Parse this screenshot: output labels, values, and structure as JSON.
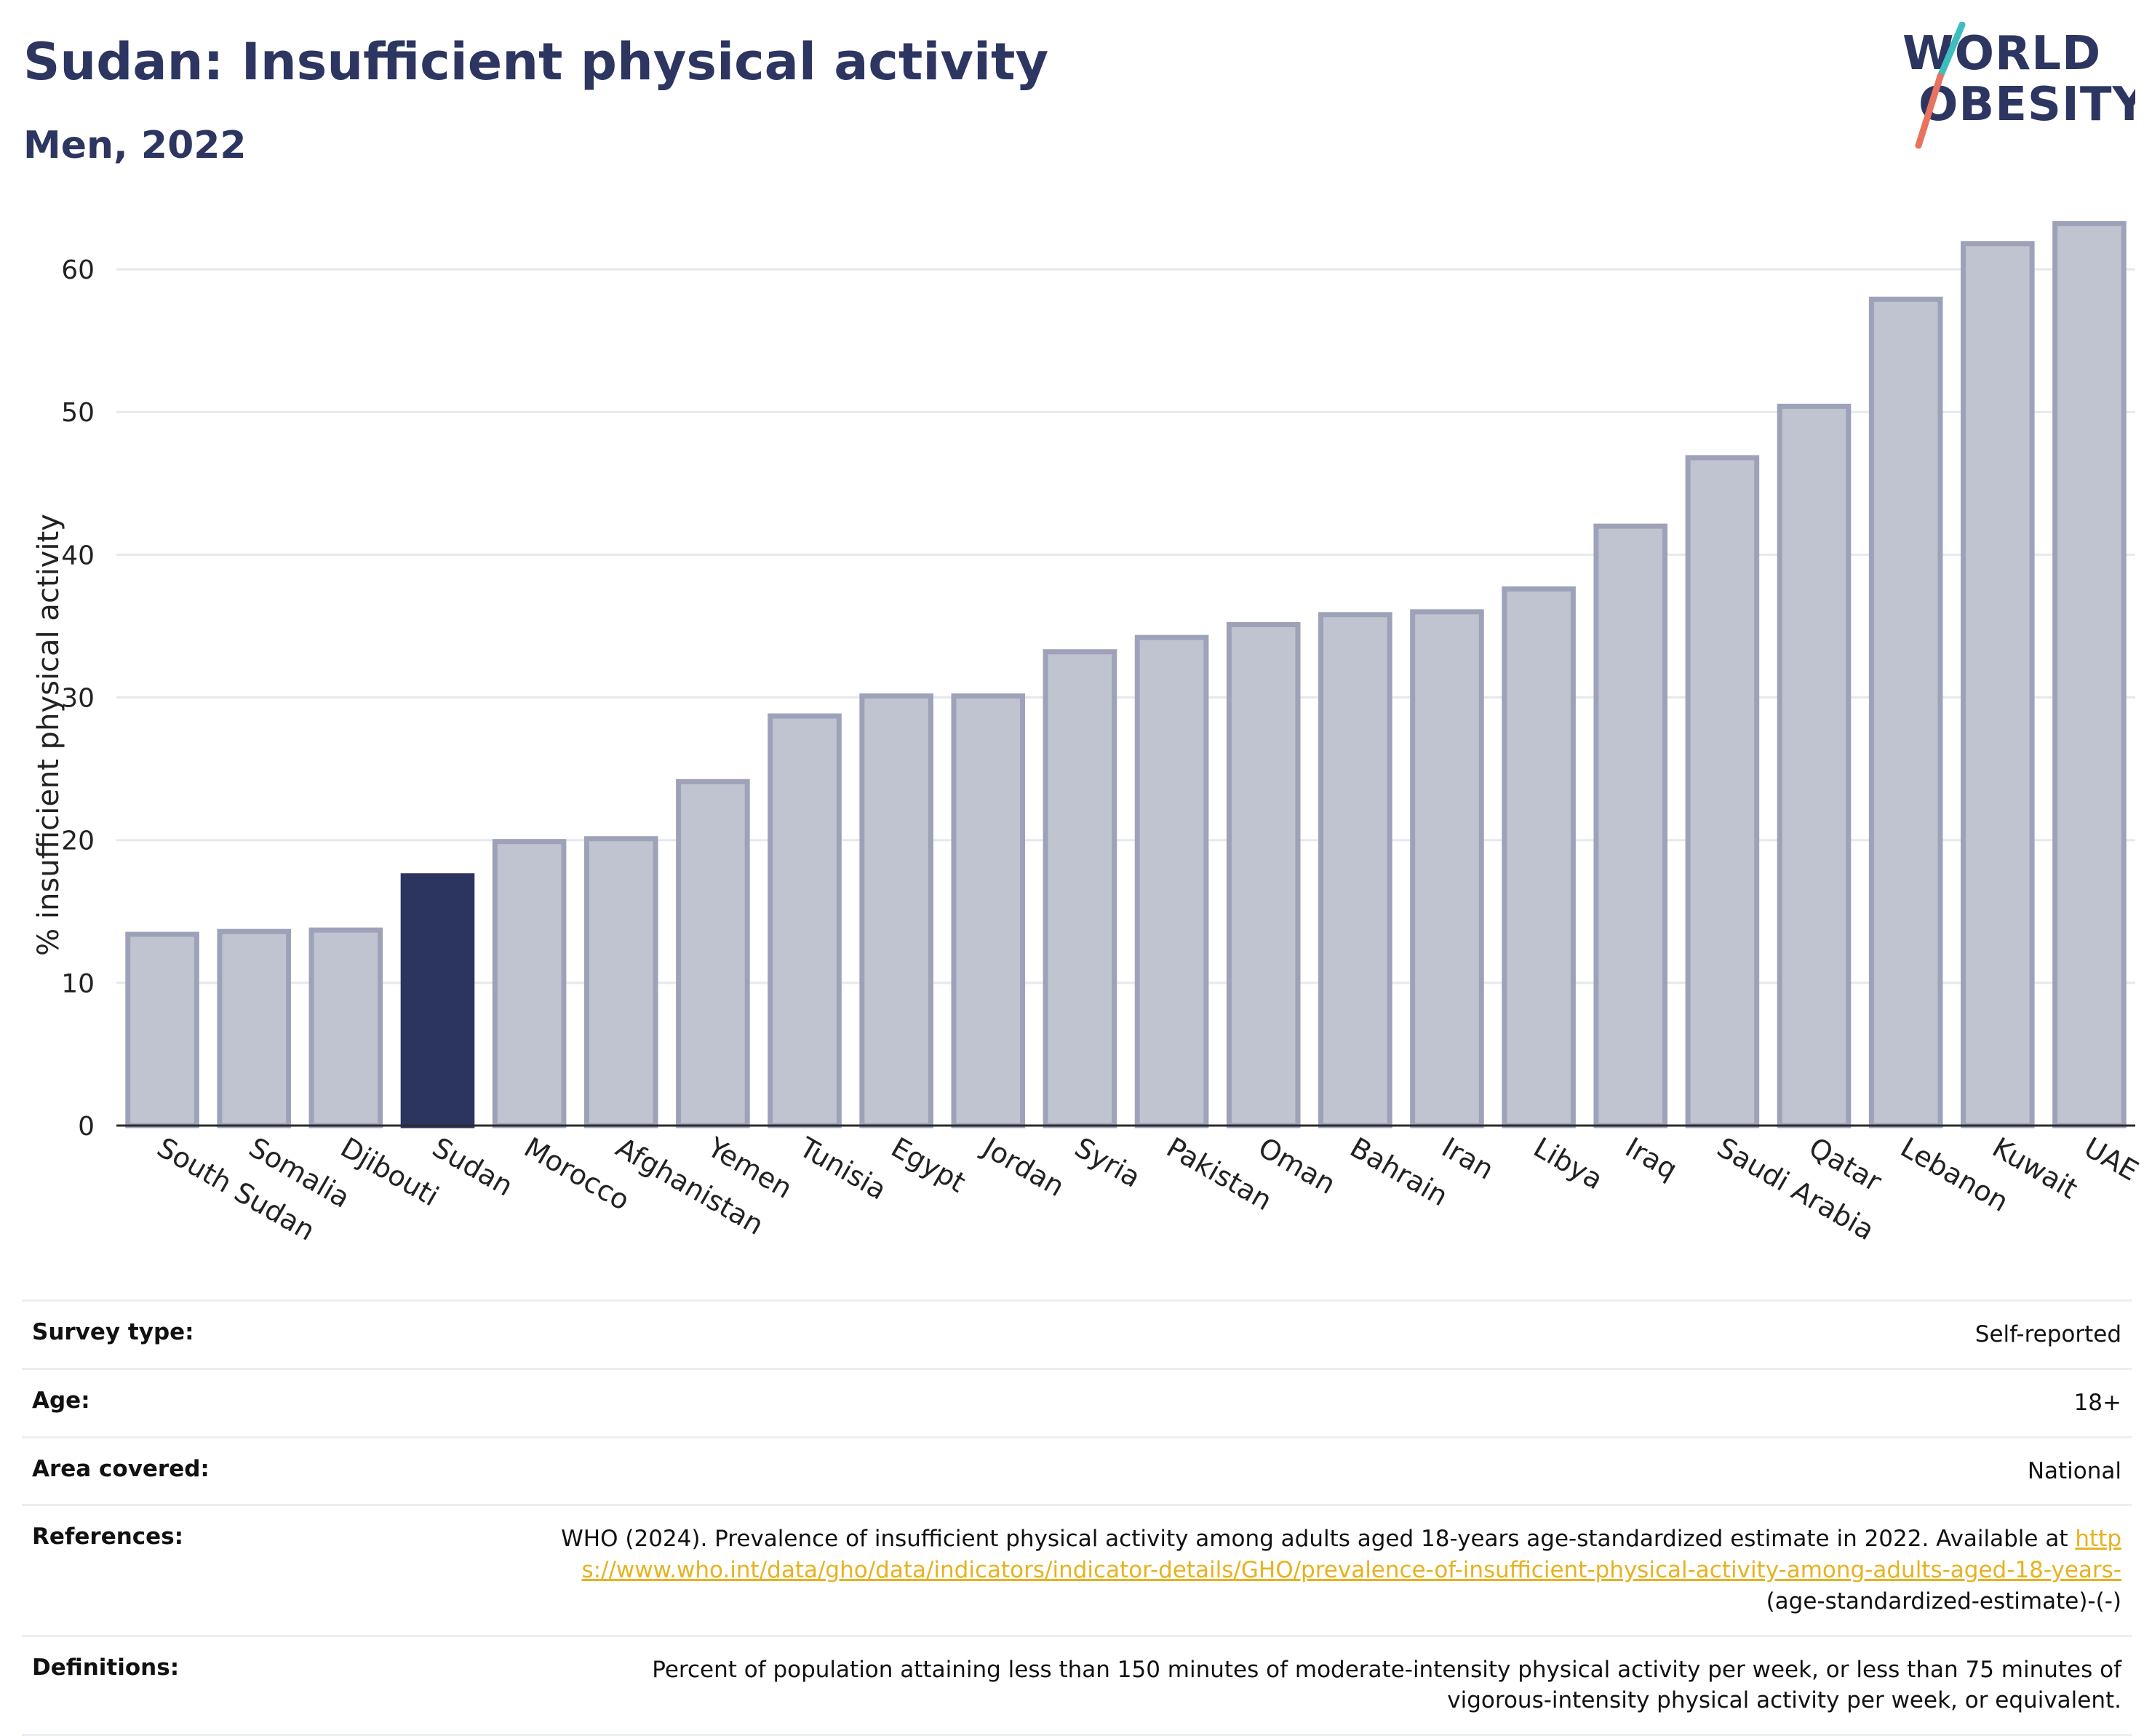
{
  "header": {
    "title": "Sudan: Insufficient physical activity",
    "subtitle": "Men, 2022",
    "logo_line1": "WORLD",
    "logo_line2": "OBESITY"
  },
  "colors": {
    "highlight": "#2b3560",
    "bar_fill": "#c0c3d0",
    "bar_stroke": "#9ea2b9",
    "logo_teal": "#3dbdbd",
    "logo_coral": "#e8735f"
  },
  "chart_data": {
    "type": "bar",
    "title": "Sudan: Insufficient physical activity",
    "subtitle": "Men, 2022",
    "ylabel": "% insufficient physical activity",
    "xlabel": "",
    "ylim": [
      0,
      65
    ],
    "yticks": [
      0,
      10,
      20,
      30,
      40,
      50,
      60
    ],
    "grid": true,
    "highlight": "Sudan",
    "categories": [
      "South Sudan",
      "Somalia",
      "Djibouti",
      "Sudan",
      "Morocco",
      "Afghanistan",
      "Yemen",
      "Tunisia",
      "Egypt",
      "Jordan",
      "Syria",
      "Pakistan",
      "Oman",
      "Bahrain",
      "Iran",
      "Libya",
      "Iraq",
      "Saudi Arabia",
      "Qatar",
      "Lebanon",
      "Kuwait",
      "UAE"
    ],
    "values": [
      13.4,
      13.6,
      13.7,
      17.5,
      19.9,
      20.1,
      24.1,
      28.7,
      30.1,
      30.1,
      33.2,
      34.2,
      35.1,
      35.8,
      36.0,
      37.6,
      42.0,
      46.8,
      50.4,
      57.9,
      61.8,
      63.2
    ]
  },
  "meta": {
    "survey_type_label": "Survey type:",
    "survey_type_value": "Self-reported",
    "age_label": "Age:",
    "age_value": "18+",
    "area_label": "Area covered:",
    "area_value": "National",
    "references_label": "References:",
    "references_text": "WHO (2024). Prevalence of insufficient physical activity among adults aged 18-years age-standardized estimate in 2022. Available at ",
    "references_link": "https://www.who.int/data/gho/data/indicators/indicator-details/GHO/prevalence-of-insufficient-physical-activity-among-adults-aged-18-years-",
    "references_suffix": "(age-standardized-estimate)-(-)",
    "definitions_label": "Definitions:",
    "definitions_value": "Percent of population attaining less than 150 minutes of moderate-intensity physical activity per week, or less than 75 minutes of vigorous-intensity physical activity per week, or equivalent."
  }
}
